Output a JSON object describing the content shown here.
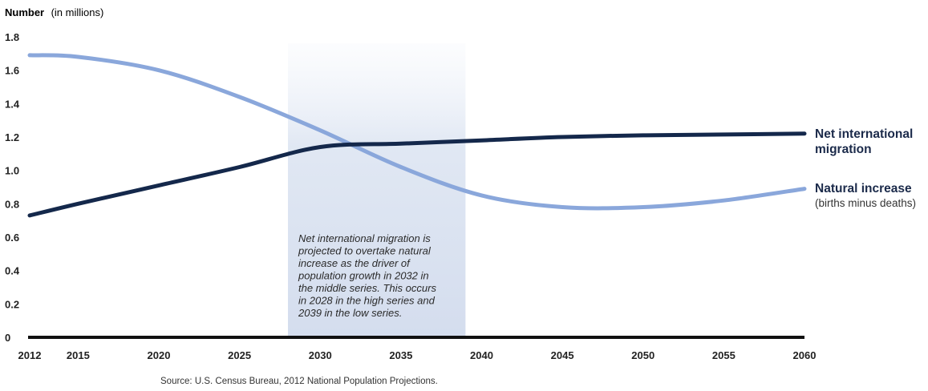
{
  "chart_data": {
    "type": "line",
    "title": "",
    "ylabel": "Number",
    "ylabel_unit": "(in millions)",
    "xlabel": "",
    "ylim": [
      0,
      1.8
    ],
    "xlim": [
      2012,
      2060
    ],
    "yticks": [
      "0",
      "0.2",
      "0.4",
      "0.6",
      "0.8",
      "1.0",
      "1.2",
      "1.4",
      "1.6",
      "1.8"
    ],
    "xticks": [
      "2012",
      "2015",
      "2020",
      "2025",
      "2030",
      "2035",
      "2040",
      "2045",
      "2050",
      "2055",
      "2060"
    ],
    "series": [
      {
        "name": "Net international migration",
        "label_lines": [
          "Net international",
          "migration"
        ],
        "sublabel": "",
        "color": "#14284b",
        "x": [
          2012,
          2015,
          2020,
          2025,
          2030,
          2035,
          2040,
          2045,
          2050,
          2055,
          2060
        ],
        "y": [
          0.73,
          0.8,
          0.91,
          1.02,
          1.14,
          1.16,
          1.18,
          1.2,
          1.21,
          1.215,
          1.22
        ]
      },
      {
        "name": "Natural increase",
        "label_lines": [
          "Natural increase"
        ],
        "sublabel": "(births minus deaths)",
        "color": "#8aa7db",
        "x": [
          2012,
          2015,
          2020,
          2025,
          2030,
          2035,
          2040,
          2045,
          2050,
          2055,
          2060
        ],
        "y": [
          1.69,
          1.68,
          1.6,
          1.44,
          1.24,
          1.02,
          0.85,
          0.78,
          0.78,
          0.82,
          0.89
        ]
      }
    ],
    "highlight_range": [
      2028,
      2039
    ],
    "annotation_lines": [
      "Net international migration is",
      "projected to overtake natural",
      "increase as the driver of",
      "population growth in 2032 in",
      "the middle series. This occurs",
      "in 2028 in the high series and",
      "2039 in the low series."
    ],
    "source": "Source: U.S. Census Bureau, 2012 National Population Projections."
  }
}
